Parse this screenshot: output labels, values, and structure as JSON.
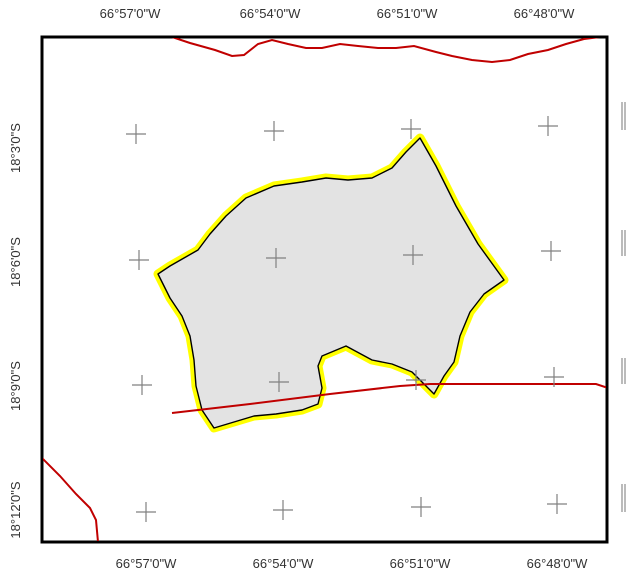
{
  "map": {
    "top_lon_labels": [
      "66°57'0\"W",
      "66°54'0\"W",
      "66°51'0\"W",
      "66°48'0\"W"
    ],
    "bottom_lon_labels": [
      "66°57'0\"W",
      "66°54'0\"W",
      "66°51'0\"W",
      "66°48'0\"W"
    ],
    "left_lat_labels": [
      "18°3'0\"S",
      "18°6'0\"S",
      "18°9'0\"S",
      "18°12'0\"S"
    ],
    "colors": {
      "background": "#ffffff",
      "map_frame": "#000000",
      "polygon_fill": "#e3e3e3",
      "polygon_outline": "#000000",
      "polygon_halo": "#ffff00",
      "boundary_lines": "#c00000",
      "graticule_cross": "#808080"
    },
    "features": [
      "gray-polygon-with-yellow-halo",
      "red-boundary-lines",
      "graticule-crosses"
    ]
  }
}
